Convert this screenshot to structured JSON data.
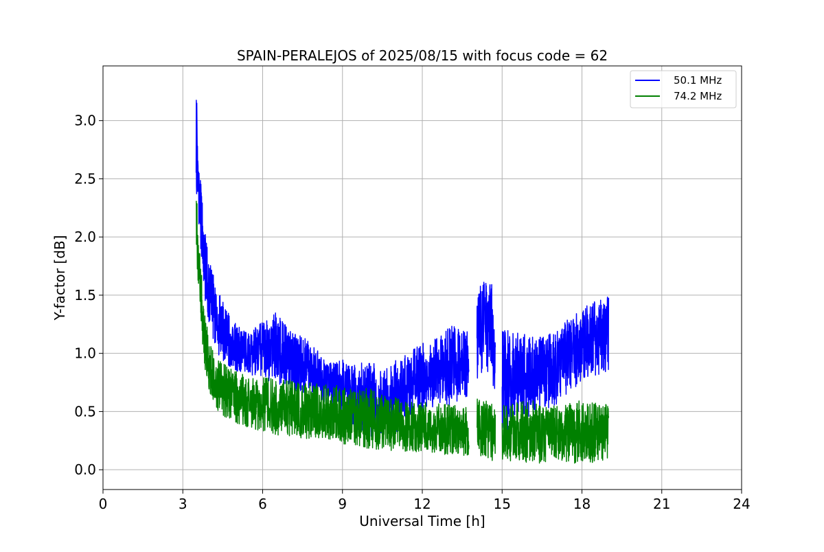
{
  "chart_data": {
    "type": "line",
    "title": "SPAIN-PERALEJOS of 2025/08/15 with focus code = 62",
    "xlabel": "Universal Time [h]",
    "ylabel": "Y-factor [dB]",
    "xlim": [
      0,
      24
    ],
    "ylim": [
      -0.17,
      3.47
    ],
    "xticks": [
      0,
      3,
      6,
      9,
      12,
      15,
      18,
      21,
      24
    ],
    "xtick_labels": [
      "0",
      "3",
      "6",
      "9",
      "12",
      "15",
      "18",
      "21",
      "24"
    ],
    "yticks": [
      0.0,
      0.5,
      1.0,
      1.5,
      2.0,
      2.5,
      3.0
    ],
    "ytick_labels": [
      "0.0",
      "0.5",
      "1.0",
      "1.5",
      "2.0",
      "2.5",
      "3.0"
    ],
    "grid": true,
    "legend_position": "top-right",
    "x_range_observed": [
      3.5,
      19.0
    ],
    "gaps": [
      [
        13.75,
        14.05
      ],
      [
        14.75,
        15.0
      ]
    ],
    "series": [
      {
        "name": "50.1 MHz",
        "color": "#0000ff",
        "envelope": {
          "x": [
            3.5,
            3.55,
            3.6,
            3.7,
            3.8,
            4.0,
            4.3,
            4.6,
            5.0,
            5.5,
            6.0,
            6.5,
            7.0,
            7.5,
            8.0,
            8.5,
            9.0,
            9.5,
            10.0,
            10.5,
            11.0,
            11.5,
            12.0,
            12.5,
            13.0,
            13.5,
            13.75,
            14.05,
            14.3,
            14.6,
            15.0,
            15.5,
            16.0,
            16.5,
            17.0,
            17.5,
            18.0,
            18.5,
            19.0
          ],
          "upper": [
            3.3,
            3.05,
            2.7,
            2.4,
            2.1,
            1.8,
            1.55,
            1.4,
            1.25,
            1.18,
            1.3,
            1.35,
            1.2,
            1.15,
            1.05,
            0.95,
            0.95,
            0.9,
            0.95,
            0.85,
            0.95,
            1.0,
            1.1,
            1.15,
            1.25,
            1.2,
            1.2,
            1.55,
            1.62,
            1.6,
            1.2,
            1.2,
            1.15,
            1.15,
            1.2,
            1.3,
            1.4,
            1.45,
            1.5
          ],
          "lower": [
            2.4,
            2.3,
            2.1,
            1.8,
            1.5,
            1.2,
            1.0,
            0.9,
            0.85,
            0.8,
            0.8,
            0.72,
            0.7,
            0.65,
            0.6,
            0.55,
            0.5,
            0.35,
            0.25,
            0.3,
            0.3,
            0.45,
            0.5,
            0.55,
            0.55,
            0.6,
            0.6,
            0.75,
            0.8,
            0.8,
            0.25,
            0.45,
            0.45,
            0.5,
            0.55,
            0.65,
            0.75,
            0.8,
            0.85
          ]
        }
      },
      {
        "name": "74.2 MHz",
        "color": "#008000",
        "envelope": {
          "x": [
            3.5,
            3.55,
            3.6,
            3.7,
            3.8,
            4.0,
            4.3,
            4.6,
            5.0,
            5.5,
            6.0,
            6.5,
            7.0,
            7.5,
            8.0,
            8.5,
            9.0,
            9.5,
            10.0,
            10.5,
            11.0,
            11.5,
            12.0,
            12.5,
            13.0,
            13.5,
            13.75,
            14.05,
            14.3,
            14.6,
            15.0,
            15.5,
            16.0,
            16.5,
            17.0,
            17.5,
            18.0,
            18.5,
            19.0
          ],
          "upper": [
            2.45,
            2.25,
            2.0,
            1.7,
            1.4,
            1.1,
            0.95,
            0.9,
            0.85,
            0.82,
            0.8,
            0.78,
            0.78,
            0.76,
            0.75,
            0.73,
            0.72,
            0.7,
            0.7,
            0.65,
            0.62,
            0.6,
            0.58,
            0.58,
            0.56,
            0.55,
            0.55,
            0.62,
            0.6,
            0.58,
            0.55,
            0.58,
            0.6,
            0.58,
            0.55,
            0.58,
            0.6,
            0.6,
            0.55
          ],
          "lower": [
            1.9,
            1.7,
            1.5,
            1.2,
            0.9,
            0.65,
            0.5,
            0.45,
            0.4,
            0.35,
            0.32,
            0.3,
            0.28,
            0.27,
            0.26,
            0.25,
            0.22,
            0.2,
            0.18,
            0.17,
            0.16,
            0.15,
            0.14,
            0.13,
            0.13,
            0.12,
            0.12,
            0.12,
            0.1,
            0.08,
            0.07,
            0.08,
            0.06,
            0.05,
            0.07,
            0.06,
            0.05,
            0.06,
            0.05
          ]
        }
      }
    ]
  }
}
